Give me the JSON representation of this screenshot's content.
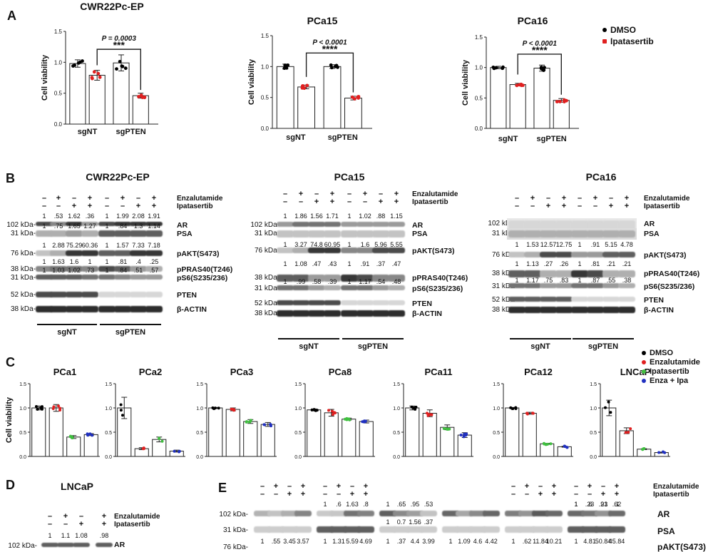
{
  "figure": {
    "panels": {
      "A": "A",
      "B": "B",
      "C": "C",
      "D": "D",
      "E": "E"
    }
  },
  "legend_a": [
    {
      "label": "DMSO",
      "color": "#000000"
    },
    {
      "label": "Ipatasertib",
      "color": "#e02020"
    }
  ],
  "legend_c": [
    {
      "label": "DMSO",
      "color": "#000000"
    },
    {
      "label": "Enzalutamide",
      "color": "#e02020"
    },
    {
      "label": "Ipatasertib",
      "color": "#3fbf3f"
    },
    {
      "label": "Enza + Ipa",
      "color": "#2030c0"
    }
  ],
  "chart_data": [
    {
      "type": "bar",
      "title": "CWR22Pc-EP",
      "ylabel": "Cell viability",
      "ylim": [
        0,
        1.5
      ],
      "yticks": [
        "0.0",
        "0.5",
        "1.0",
        "1.5"
      ],
      "categories": [
        "sgNT",
        "sgPTEN"
      ],
      "series": [
        {
          "name": "DMSO",
          "values": [
            0.98,
            0.99
          ]
        },
        {
          "name": "Ipatasertib",
          "values": [
            0.79,
            0.46
          ]
        }
      ],
      "errors": [
        [
          0.06,
          0.13
        ],
        [
          0.08,
          0.04
        ]
      ],
      "annotation": {
        "p": "P = 0.0003",
        "stars": "***"
      }
    },
    {
      "type": "bar",
      "title": "PCa15",
      "ylabel": "Cell viability",
      "ylim": [
        0,
        1.5
      ],
      "yticks": [
        "0.0",
        "0.5",
        "1.0",
        "1.5"
      ],
      "categories": [
        "sgNT",
        "sgPTEN"
      ],
      "series": [
        {
          "name": "DMSO",
          "values": [
            1.0,
            1.0
          ]
        },
        {
          "name": "Ipatasertib",
          "values": [
            0.67,
            0.49
          ]
        }
      ],
      "errors": [
        [
          0.04,
          0.03
        ],
        [
          0.03,
          0.03
        ]
      ],
      "annotation": {
        "p": "P < 0.0001",
        "stars": "****"
      }
    },
    {
      "type": "bar",
      "title": "PCa16",
      "ylabel": "Cell viability",
      "ylim": [
        0,
        1.5
      ],
      "yticks": [
        "0.0",
        "0.5",
        "1.0",
        "1.5"
      ],
      "categories": [
        "sgNT",
        "sgPTEN"
      ],
      "series": [
        {
          "name": "DMSO",
          "values": [
            1.0,
            0.99
          ]
        },
        {
          "name": "Ipatasertib",
          "values": [
            0.72,
            0.46
          ]
        }
      ],
      "errors": [
        [
          0.02,
          0.05
        ],
        [
          0.02,
          0.03
        ]
      ],
      "annotation": {
        "p": "P < 0.0001",
        "stars": "****"
      }
    },
    {
      "type": "bar",
      "title": "PCa1",
      "ylabel": "Cell viability",
      "ylim": [
        0,
        1.5
      ],
      "yticks": [
        "0.0",
        "0.5",
        "1.0",
        "1.5"
      ],
      "categories": [
        "DMSO",
        "Enzalutamide",
        "Ipatasertib",
        "Enza + Ipa"
      ],
      "values": [
        1.0,
        1.0,
        0.4,
        0.45
      ],
      "errors": [
        0.04,
        0.07,
        0.03,
        0.02
      ]
    },
    {
      "type": "bar",
      "title": "PCa2",
      "ylim": [
        0,
        1.5
      ],
      "yticks": [
        "0.0",
        "0.5",
        "1.0",
        "1.5"
      ],
      "categories": [
        "DMSO",
        "Enzalutamide",
        "Ipatasertib",
        "Enza + Ipa"
      ],
      "values": [
        1.0,
        0.16,
        0.35,
        0.11
      ],
      "errors": [
        0.22,
        0.02,
        0.05,
        0.02
      ]
    },
    {
      "type": "bar",
      "title": "PCa3",
      "ylim": [
        0,
        1.5
      ],
      "yticks": [
        "0.0",
        "0.5",
        "1.0",
        "1.5"
      ],
      "categories": [
        "DMSO",
        "Enzalutamide",
        "Ipatasertib",
        "Enza + Ipa"
      ],
      "values": [
        1.0,
        0.97,
        0.72,
        0.66
      ],
      "errors": [
        0.01,
        0.03,
        0.04,
        0.04
      ]
    },
    {
      "type": "bar",
      "title": "PCa8",
      "ylim": [
        0,
        1.5
      ],
      "yticks": [
        "0.0",
        "0.5",
        "1.0",
        "1.5"
      ],
      "categories": [
        "DMSO",
        "Enzalutamide",
        "Ipatasertib",
        "Enza + Ipa"
      ],
      "values": [
        0.96,
        0.9,
        0.77,
        0.72
      ],
      "errors": [
        0.02,
        0.07,
        0.02,
        0.03
      ]
    },
    {
      "type": "bar",
      "title": "PCa11",
      "ylim": [
        0,
        1.5
      ],
      "yticks": [
        "0.0",
        "0.5",
        "1.0",
        "1.5"
      ],
      "categories": [
        "DMSO",
        "Enzalutamide",
        "Ipatasertib",
        "Enza + Ipa"
      ],
      "values": [
        1.0,
        0.89,
        0.6,
        0.44
      ],
      "errors": [
        0.04,
        0.07,
        0.05,
        0.05
      ]
    },
    {
      "type": "bar",
      "title": "PCa12",
      "ylim": [
        0,
        1.5
      ],
      "yticks": [
        "0.0",
        "0.5",
        "1.0",
        "1.5"
      ],
      "categories": [
        "DMSO",
        "Enzalutamide",
        "Ipatasertib",
        "Enza + Ipa"
      ],
      "values": [
        1.0,
        0.89,
        0.26,
        0.2
      ],
      "errors": [
        0.01,
        0.02,
        0.01,
        0.01
      ]
    },
    {
      "type": "bar",
      "title": "LNCaP",
      "ylim": [
        0,
        1.5
      ],
      "yticks": [
        "0.0",
        "0.5",
        "1.0",
        "1.5"
      ],
      "categories": [
        "DMSO",
        "Enzalutamide",
        "Ipatasertib",
        "Enza + Ipa"
      ],
      "values": [
        1.0,
        0.53,
        0.15,
        0.08
      ],
      "errors": [
        0.16,
        0.06,
        0.01,
        0.01
      ]
    }
  ],
  "blots": {
    "treat_enza": "Enzalutamide",
    "treat_ipa": "Ipatasertib",
    "b1": {
      "title": "CWR22Pc-EP",
      "enza": [
        "–",
        "+",
        "–",
        "+",
        "–",
        "+",
        "–",
        "+"
      ],
      "ipa": [
        "–",
        "–",
        "+",
        "+",
        "–",
        "–",
        "+",
        "+"
      ],
      "rows": [
        {
          "label": "AR",
          "kda": "102 kDa-",
          "vals": [
            "1",
            ".53",
            "1.62",
            ".36",
            "1",
            "1.99",
            "2.08",
            "1.91"
          ]
        },
        {
          "label": "PSA",
          "kda": "31 kDa-",
          "vals": [
            "1",
            ".75",
            "1.65",
            "1.27",
            "1",
            ".84",
            "1.3",
            "1.14"
          ]
        },
        {
          "label": "pAKT(S473)",
          "kda": "76 kDa-",
          "vals": [
            "1",
            "2.88",
            "75.29",
            "60.36",
            "1",
            "1.57",
            "7.33",
            "7.18"
          ]
        },
        {
          "label": "pPRAS40(T246)",
          "kda": "38 kDa-",
          "vals": [
            "1",
            "1.63",
            "1.6",
            "1",
            "1",
            ".81",
            ".4",
            ".25"
          ]
        },
        {
          "label": "pS6(S235/236)",
          "kda": "31 kDa-",
          "vals": [
            "1",
            "1.03",
            "1.02",
            ".73",
            "1",
            ".84",
            ".51",
            ".57"
          ]
        },
        {
          "label": "PTEN",
          "kda": "52 kDa-",
          "vals": []
        },
        {
          "label": "β-ACTIN",
          "kda": "38 kDa-",
          "vals": []
        }
      ],
      "groups": [
        "sgNT",
        "sgPTEN"
      ]
    },
    "b2": {
      "title": "PCa15",
      "enza": [
        "–",
        "+",
        "–",
        "+",
        "–",
        "+",
        "–",
        "+"
      ],
      "ipa": [
        "–",
        "–",
        "+",
        "+",
        "–",
        "–",
        "+",
        "+"
      ],
      "rows": [
        {
          "label": "AR",
          "kda": "102 kDa-",
          "vals": [
            "1",
            "1.86",
            "1.56",
            "1.71",
            "1",
            "1.02",
            ".88",
            "1.15"
          ]
        },
        {
          "label": "PSA",
          "kda": "31 kDa-",
          "vals": []
        },
        {
          "label": "pAKT(S473)",
          "kda": "76 kDa-",
          "vals": [
            "1",
            "3.27",
            "74.8",
            "60.95",
            "1",
            "1.6",
            "5.96",
            "5.55"
          ]
        },
        {
          "label": "pPRAS40(T246)",
          "kda": "38 kDa-",
          "vals": [
            "1",
            "1.08",
            ".47",
            ".43",
            "1",
            ".91",
            ".37",
            ".47"
          ]
        },
        {
          "label": "pS6(S235/236)",
          "kda": "31 kDa-",
          "vals": [
            "1",
            ".99",
            ".58",
            ".39",
            "1",
            "1.17",
            ".54",
            ".48"
          ]
        },
        {
          "label": "PTEN",
          "kda": "52 kDa-",
          "vals": []
        },
        {
          "label": "β-ACTIN",
          "kda": "38 kDa-",
          "vals": []
        }
      ],
      "groups": [
        "sgNT",
        "sgPTEN"
      ]
    },
    "b3": {
      "title": "PCa16",
      "enza": [
        "–",
        "+",
        "–",
        "+",
        "–",
        "+",
        "–",
        "+"
      ],
      "ipa": [
        "–",
        "–",
        "+",
        "+",
        "–",
        "–",
        "+",
        "+"
      ],
      "rows": [
        {
          "label": "AR",
          "kda": "102 kDa-",
          "vals": []
        },
        {
          "label": "PSA",
          "kda": "31 kDa-",
          "vals": []
        },
        {
          "label": "pAKT(S473)",
          "kda": "76 kDa-",
          "vals": [
            "1",
            "1.53",
            "12.57",
            "12.75",
            "1",
            ".91",
            "5.15",
            "4.78"
          ]
        },
        {
          "label": "pPRAS40(T246)",
          "kda": "38 kDa-",
          "vals": [
            "1",
            "1.13",
            ".27",
            ".26",
            "1",
            ".81",
            ".21",
            ".21"
          ]
        },
        {
          "label": "pS6(S235/236)",
          "kda": "31 kDa-",
          "vals": [
            "1",
            "1.17",
            ".75",
            ".83",
            "1",
            ".87",
            ".55",
            ".38"
          ]
        },
        {
          "label": "PTEN",
          "kda": "52 kDa-",
          "vals": []
        },
        {
          "label": "β-ACTIN",
          "kda": "38 kDa-",
          "vals": []
        }
      ],
      "groups": [
        "sgNT",
        "sgPTEN"
      ]
    },
    "d": {
      "title": "LNCaP",
      "enza": [
        "–",
        "+",
        "–",
        "+"
      ],
      "ipa": [
        "–",
        "–",
        "+",
        "+"
      ],
      "vals": [
        "1",
        "1.1",
        "1.08",
        ".98"
      ],
      "kda": "102 kDa-",
      "label": "AR"
    },
    "e": {
      "enza": [
        "–",
        "+",
        "–",
        "+",
        "–",
        "+",
        "–",
        "+",
        "–",
        "+",
        "–",
        "+",
        "–",
        "+",
        "–",
        "+"
      ],
      "ipa": [
        "–",
        "–",
        "+",
        "+",
        "–",
        "–",
        "+",
        "+",
        "–",
        "–",
        "+",
        "+",
        "–",
        "–",
        "+",
        "+"
      ],
      "ar_vals": [
        "1",
        ".6",
        "1.63",
        ".8",
        "1",
        ".65",
        ".95",
        ".53",
        "",
        "",
        "",
        "",
        "1",
        ".23",
        ".91",
        ".1"
      ],
      "ar_vals2": [
        "1",
        ".6",
        ".23",
        ".62"
      ],
      "psa_vals": [
        "",
        "",
        "",
        "",
        "1",
        "0.7",
        "1.56",
        ".37"
      ],
      "akt_vals": [
        "1",
        ".55",
        "3.45",
        "3.57",
        "1",
        "1.31",
        "5.59",
        "4.69",
        "1",
        ".37",
        "4.4",
        "3.99",
        "1",
        "1.09",
        "4.6",
        "4.42",
        "1",
        ".62",
        "11.84",
        "10.21",
        "1",
        "4.81",
        "50.84",
        "45.84"
      ],
      "kda": [
        "102 kDa-",
        "31 kDa-",
        "76 kDa-"
      ],
      "labels": [
        "AR",
        "PSA",
        "pAKT(S473)"
      ]
    }
  }
}
